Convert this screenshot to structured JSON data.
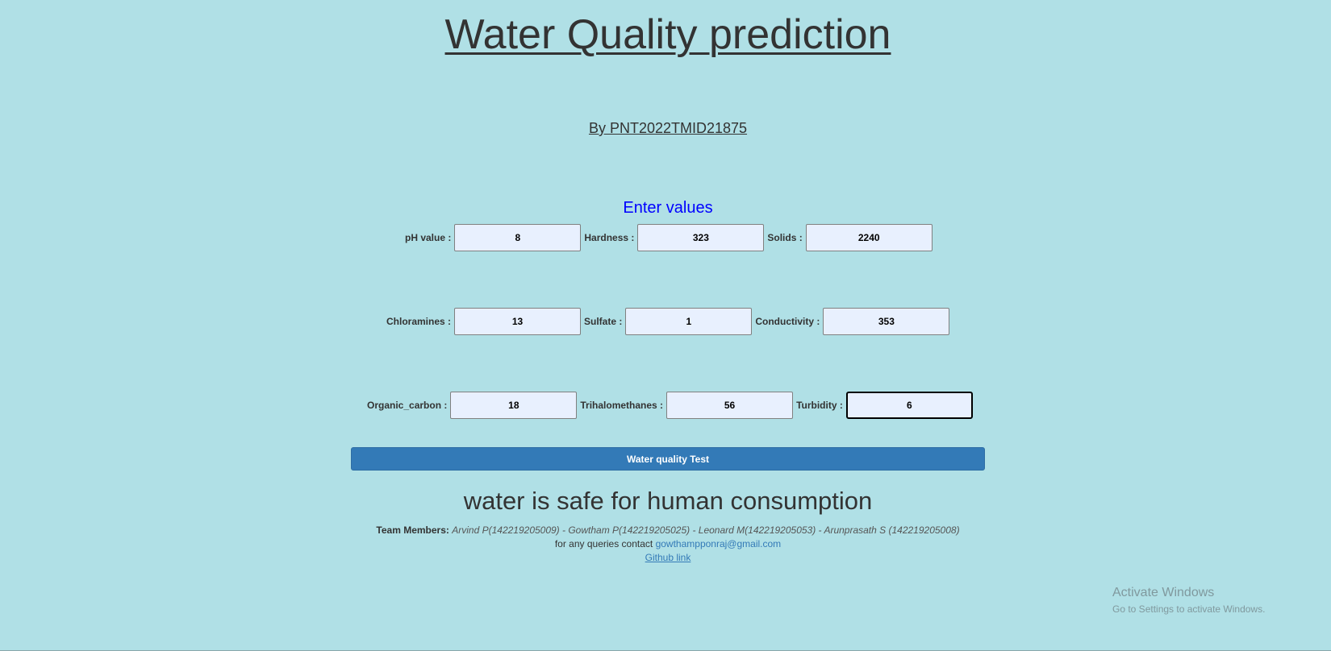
{
  "header": {
    "title": "Water Quality prediction",
    "subtitle": "By PNT2022TMID21875"
  },
  "form": {
    "heading": "Enter values",
    "rows": [
      [
        {
          "label": "pH value :",
          "value": "8"
        },
        {
          "label": "Hardness :",
          "value": "323"
        },
        {
          "label": "Solids :",
          "value": "2240"
        }
      ],
      [
        {
          "label": "Chloramines :",
          "value": "13"
        },
        {
          "label": "Sulfate :",
          "value": "1"
        },
        {
          "label": "Conductivity :",
          "value": "353"
        }
      ],
      [
        {
          "label": "Organic_carbon :",
          "value": "18"
        },
        {
          "label": "Trihalomethanes :",
          "value": "56"
        },
        {
          "label": "Turbidity :",
          "value": "6"
        }
      ]
    ],
    "submit_label": "Water quality Test"
  },
  "result": {
    "text": "water is safe for human consumption"
  },
  "footer": {
    "team_label": "Team Members:",
    "team_members": "Arvind P(142219205009) - Gowtham P(142219205025) - Leonard M(142219205053) - Arunprasath S (142219205008)",
    "contact_text": "for any queries contact",
    "contact_email": "gowthampponraj@gmail.com",
    "github_label": "Github link"
  },
  "watermark": {
    "line1": "Activate Windows",
    "line2": "Go to Settings to activate Windows."
  },
  "colors": {
    "background": "#b0e0e6",
    "button": "#337ab7",
    "heading_blue": "#0000ff",
    "input_fill": "#e8f0fe"
  }
}
